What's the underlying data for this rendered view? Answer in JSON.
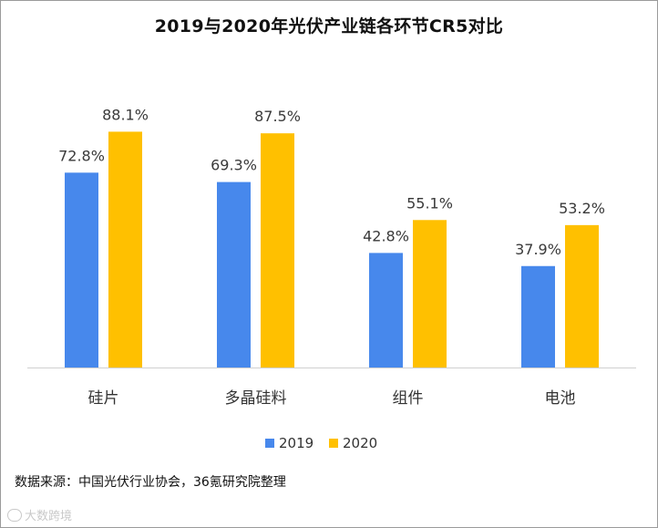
{
  "title": "2019与2020年光伏产业链各环节CR5对比",
  "source": "数据来源：中国光伏行业协会，36氪研究院整理",
  "watermark": "大数跨境",
  "chart_data": {
    "type": "bar",
    "title": "2019与2020年光伏产业链各环节CR5对比",
    "categories": [
      "硅片",
      "多晶硅料",
      "组件",
      "电池"
    ],
    "series": [
      {
        "name": "2019",
        "color": "#4788EC",
        "values": [
          72.8,
          69.3,
          42.8,
          37.9
        ],
        "labels": [
          "72.8%",
          "69.3%",
          "42.8%",
          "37.9%"
        ]
      },
      {
        "name": "2020",
        "color": "#FFC000",
        "values": [
          88.1,
          87.5,
          55.1,
          53.2
        ],
        "labels": [
          "88.1%",
          "87.5%",
          "55.1%",
          "53.2%"
        ]
      }
    ],
    "xlabel": "",
    "ylabel": "",
    "ylim": [
      0,
      100
    ],
    "grid": false,
    "legend": "bottom-center"
  }
}
